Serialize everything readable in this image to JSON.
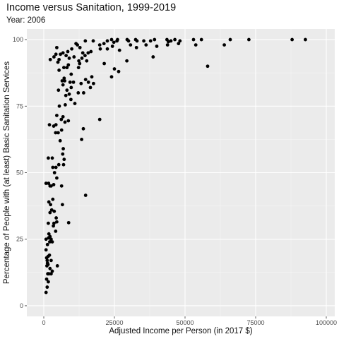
{
  "chart_data": {
    "type": "scatter",
    "title": "Income versus Sanitation, 1999-2019",
    "subtitle": "Year: 2006",
    "xlabel": "Adjusted Income per Person (in 2017 $)",
    "ylabel": "Percentage of People with (at least) Basic Sanitation Services",
    "xlim": [
      -6000,
      103000
    ],
    "ylim": [
      -4,
      104
    ],
    "xticks": [
      0,
      25000,
      50000,
      75000,
      100000
    ],
    "xtick_labels": [
      "0",
      "25000",
      "50000",
      "75000",
      "100000"
    ],
    "yticks": [
      0,
      25,
      50,
      75,
      100
    ],
    "ytick_labels": [
      "0",
      "25",
      "50",
      "75",
      "100"
    ],
    "grid": true,
    "colors": {
      "panel": "#ebebeb",
      "grid_major": "#ffffff",
      "grid_minor": "#f5f5f5",
      "point": "#000000"
    },
    "points": [
      [
        800,
        5
      ],
      [
        1200,
        7
      ],
      [
        1000,
        10
      ],
      [
        1600,
        9
      ],
      [
        1800,
        12
      ],
      [
        1400,
        12
      ],
      [
        2600,
        12
      ],
      [
        3000,
        13
      ],
      [
        2200,
        14
      ],
      [
        1100,
        15
      ],
      [
        1300,
        16
      ],
      [
        1500,
        15.5
      ],
      [
        1200,
        17
      ],
      [
        1000,
        18
      ],
      [
        1500,
        18.5
      ],
      [
        2000,
        19
      ],
      [
        2600,
        17
      ],
      [
        4800,
        15
      ],
      [
        800,
        21
      ],
      [
        1300,
        23
      ],
      [
        2100,
        24
      ],
      [
        2600,
        25
      ],
      [
        1700,
        25.5
      ],
      [
        3000,
        24
      ],
      [
        800,
        25
      ],
      [
        2200,
        26
      ],
      [
        1800,
        27
      ],
      [
        4200,
        28
      ],
      [
        1600,
        31
      ],
      [
        3400,
        30
      ],
      [
        3600,
        31
      ],
      [
        4600,
        31.5
      ],
      [
        8800,
        31.2
      ],
      [
        4400,
        33
      ],
      [
        2200,
        35
      ],
      [
        2800,
        36
      ],
      [
        3700,
        35.5
      ],
      [
        2400,
        38
      ],
      [
        1800,
        39
      ],
      [
        3200,
        40
      ],
      [
        6600,
        38
      ],
      [
        14800,
        41.5
      ],
      [
        2200,
        45
      ],
      [
        800,
        46
      ],
      [
        1700,
        46
      ],
      [
        2600,
        45
      ],
      [
        3500,
        45.5
      ],
      [
        6300,
        45
      ],
      [
        4600,
        48
      ],
      [
        3800,
        50
      ],
      [
        4300,
        52
      ],
      [
        3200,
        52
      ],
      [
        5300,
        53
      ],
      [
        7000,
        53
      ],
      [
        7200,
        55
      ],
      [
        1600,
        55.5
      ],
      [
        3000,
        55.5
      ],
      [
        6700,
        57
      ],
      [
        6900,
        59
      ],
      [
        5800,
        62
      ],
      [
        13400,
        62.5
      ],
      [
        4200,
        65
      ],
      [
        5100,
        65
      ],
      [
        6300,
        66
      ],
      [
        14000,
        66.5
      ],
      [
        2000,
        68
      ],
      [
        3500,
        67.5
      ],
      [
        4300,
        68
      ],
      [
        7500,
        69
      ],
      [
        6200,
        70
      ],
      [
        8700,
        69.5
      ],
      [
        19800,
        70
      ],
      [
        4600,
        71.5
      ],
      [
        6800,
        71
      ],
      [
        5500,
        75
      ],
      [
        7600,
        75.5
      ],
      [
        11000,
        76
      ],
      [
        9600,
        77.5
      ],
      [
        7800,
        79
      ],
      [
        9000,
        79.5
      ],
      [
        12200,
        80
      ],
      [
        14100,
        80
      ],
      [
        8200,
        81
      ],
      [
        5200,
        81
      ],
      [
        9700,
        82
      ],
      [
        16500,
        82
      ],
      [
        6800,
        83
      ],
      [
        7400,
        84.5
      ],
      [
        9300,
        84
      ],
      [
        10500,
        84
      ],
      [
        13200,
        83.5
      ],
      [
        15800,
        84
      ],
      [
        17600,
        83.5
      ],
      [
        6500,
        84.5
      ],
      [
        7200,
        85.5
      ],
      [
        14800,
        85
      ],
      [
        17000,
        86
      ],
      [
        24000,
        86
      ],
      [
        9700,
        87
      ],
      [
        26500,
        88
      ],
      [
        5400,
        88.5
      ],
      [
        7100,
        89.5
      ],
      [
        8200,
        89.5
      ],
      [
        12300,
        89.5
      ],
      [
        25000,
        89
      ],
      [
        58000,
        90
      ],
      [
        8700,
        90.5
      ],
      [
        12700,
        91
      ],
      [
        21400,
        91
      ],
      [
        5000,
        91.5
      ],
      [
        15200,
        92
      ],
      [
        5400,
        92.5
      ],
      [
        2300,
        92.5
      ],
      [
        12400,
        92
      ],
      [
        29400,
        92
      ],
      [
        9000,
        93
      ],
      [
        13500,
        93
      ],
      [
        3600,
        93.5
      ],
      [
        7900,
        94
      ],
      [
        10700,
        93.5
      ],
      [
        38700,
        93.5
      ],
      [
        5900,
        94.5
      ],
      [
        14600,
        94
      ],
      [
        4300,
        94.5
      ],
      [
        6800,
        95
      ],
      [
        13800,
        95
      ],
      [
        15700,
        95
      ],
      [
        16700,
        95.5
      ],
      [
        8500,
        95.5
      ],
      [
        4600,
        97
      ],
      [
        9900,
        96.5
      ],
      [
        20000,
        96.5
      ],
      [
        22500,
        96.5
      ],
      [
        26800,
        96
      ],
      [
        12800,
        97
      ],
      [
        24300,
        97.5
      ],
      [
        32800,
        97
      ],
      [
        11900,
        98
      ],
      [
        19800,
        98
      ],
      [
        30700,
        98
      ],
      [
        36200,
        98
      ],
      [
        40000,
        97.5
      ],
      [
        43800,
        98
      ],
      [
        47700,
        98.5
      ],
      [
        53800,
        98
      ],
      [
        63900,
        98
      ],
      [
        11400,
        98.5
      ],
      [
        21300,
        98.5
      ],
      [
        14700,
        99.5
      ],
      [
        17500,
        99.5
      ],
      [
        22500,
        99.5
      ],
      [
        24800,
        99
      ],
      [
        25900,
        99.5
      ],
      [
        30000,
        99.5
      ],
      [
        33000,
        99.5
      ],
      [
        35400,
        99.5
      ],
      [
        37800,
        99.5
      ],
      [
        44100,
        99.2
      ],
      [
        45000,
        99.5
      ],
      [
        48200,
        99.5
      ],
      [
        24000,
        100
      ],
      [
        29500,
        100
      ],
      [
        32500,
        100
      ],
      [
        39200,
        100
      ],
      [
        43600,
        100
      ],
      [
        46400,
        100
      ],
      [
        53000,
        100
      ],
      [
        55800,
        100
      ],
      [
        66000,
        100
      ],
      [
        72600,
        100
      ],
      [
        87900,
        100
      ],
      [
        92600,
        100
      ],
      [
        26100,
        100
      ]
    ]
  }
}
